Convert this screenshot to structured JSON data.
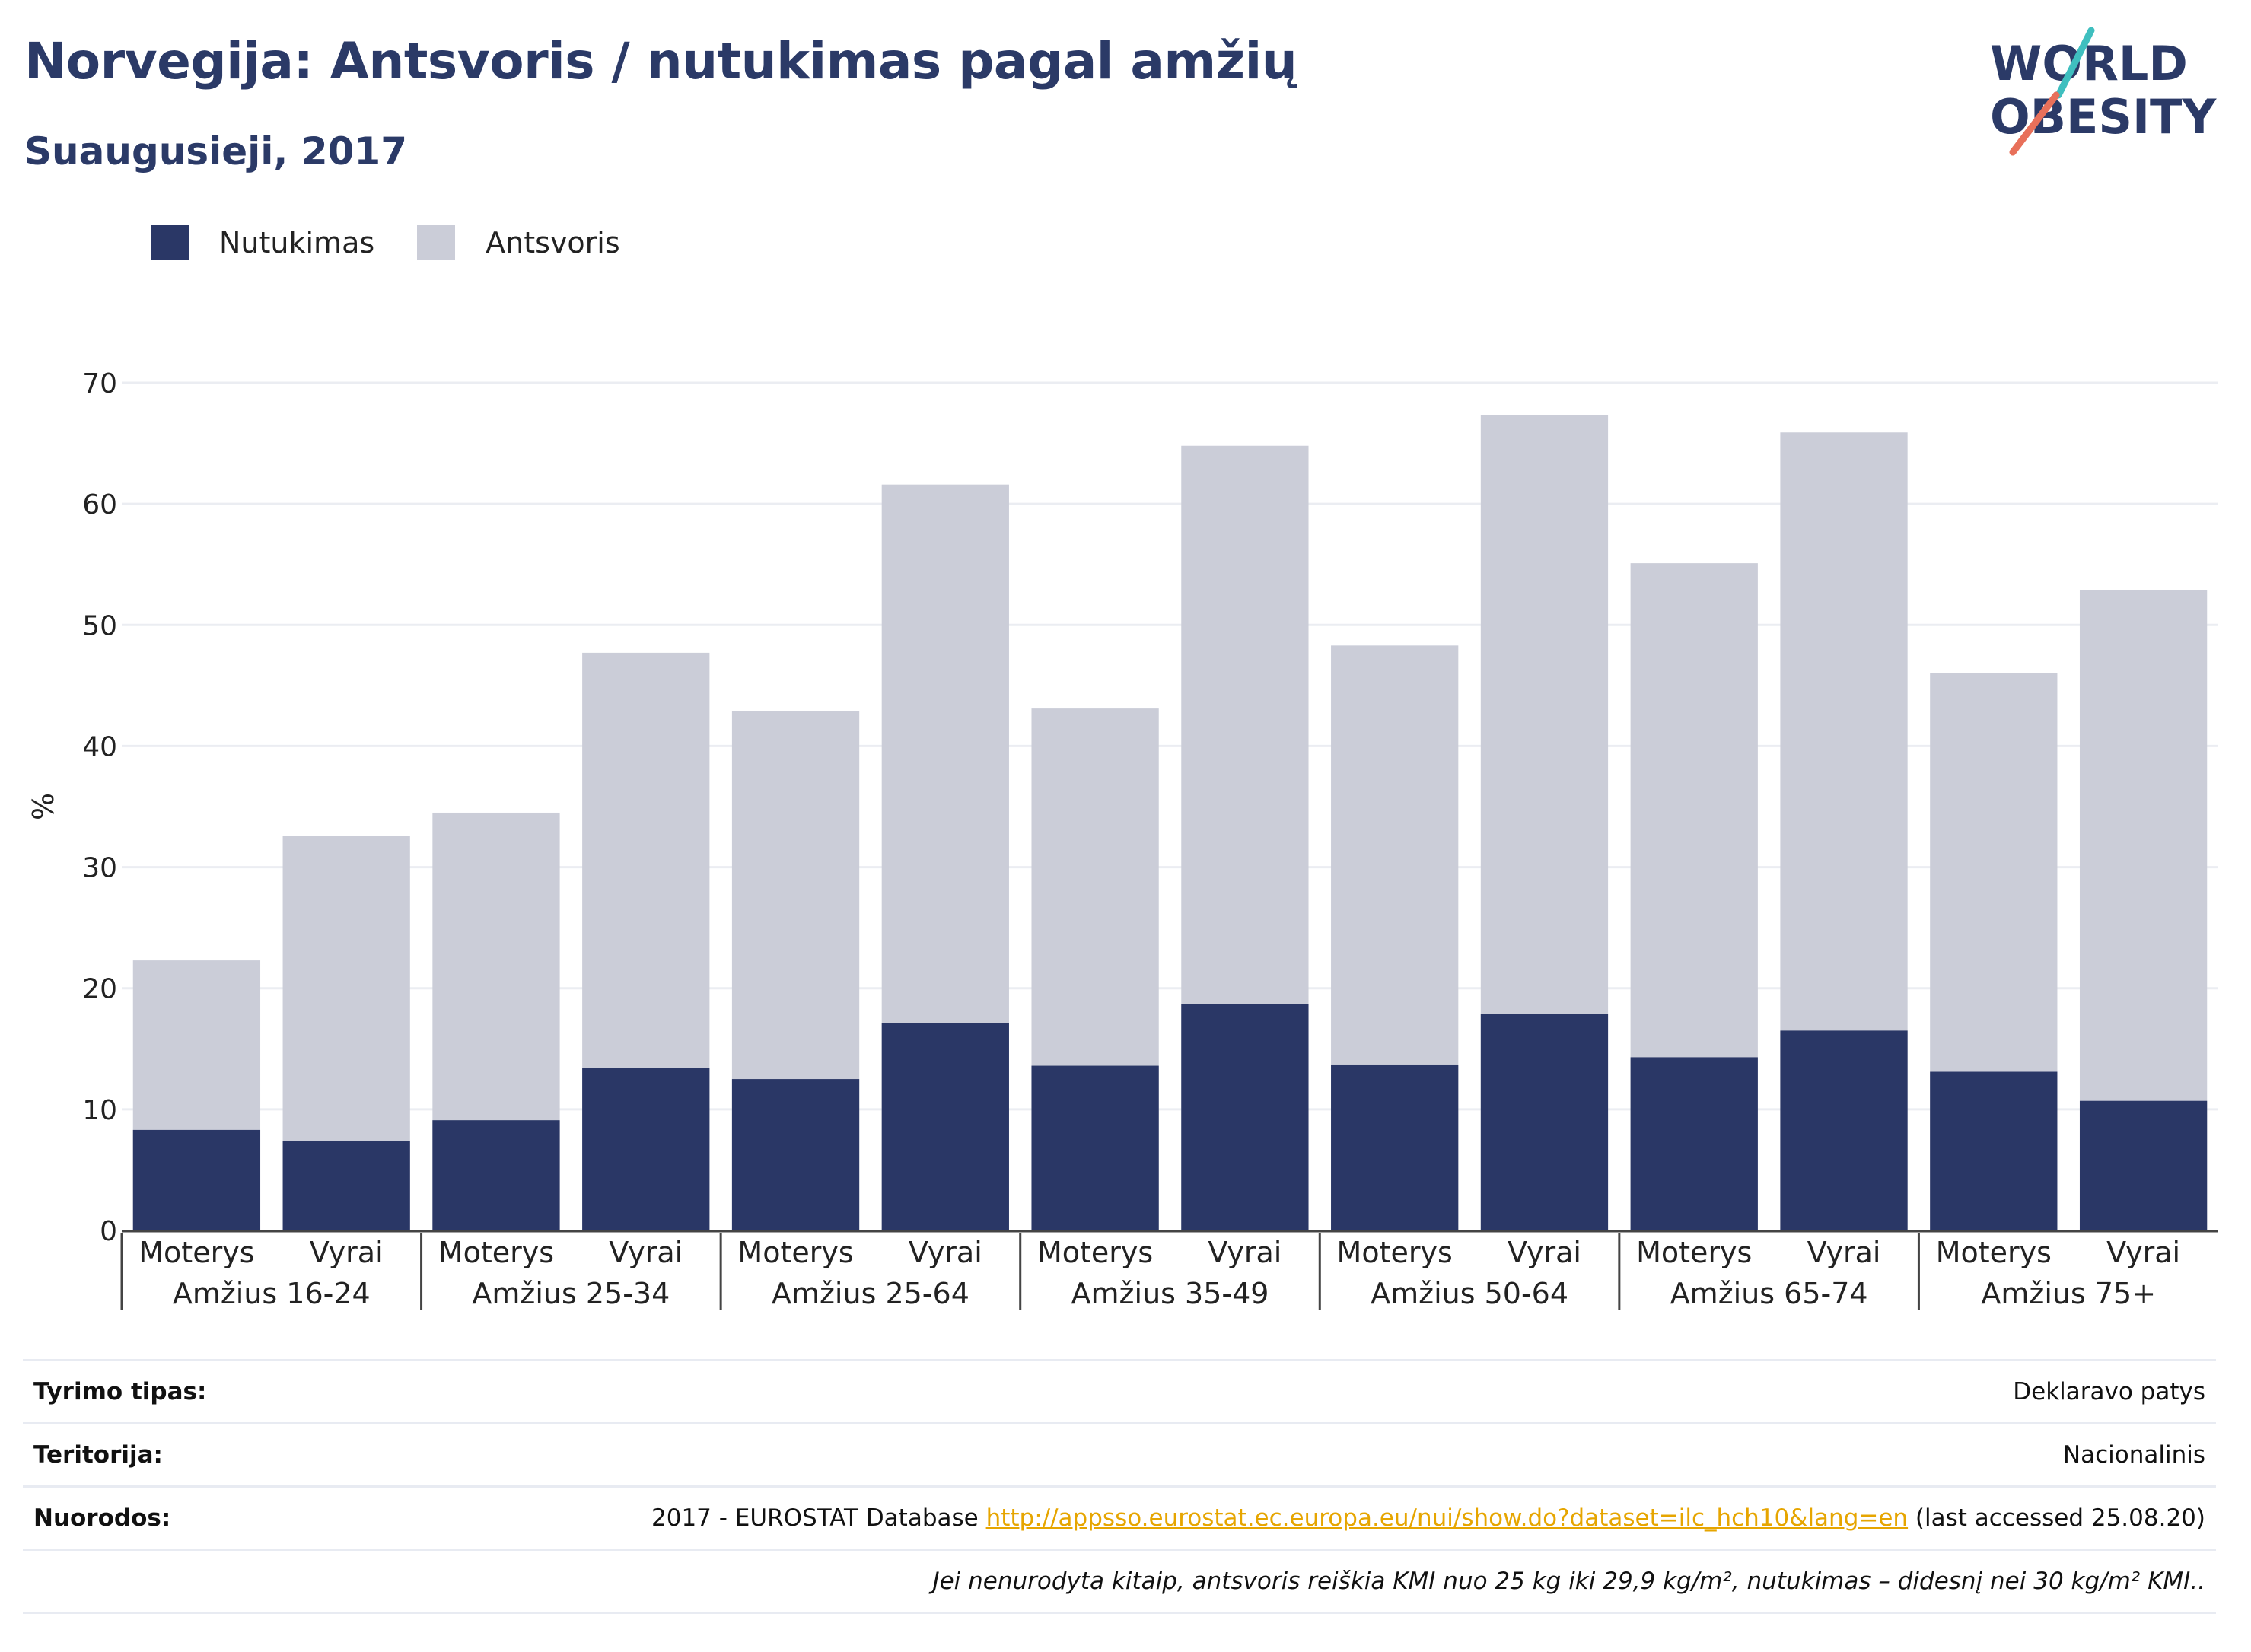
{
  "header": {
    "title": "Norvegija: Antsvoris / nutukimas pagal amžių",
    "subtitle": "Suaugusieji, 2017"
  },
  "logo": {
    "line1": "WORLD",
    "line2": "OBESITY"
  },
  "legend": [
    {
      "label": "Nutukimas",
      "color": "#2a3766"
    },
    {
      "label": "Antsvoris",
      "color": "#cbcdd8"
    }
  ],
  "chart_data": {
    "type": "bar",
    "stacked": false,
    "ylabel": "%",
    "ylim": [
      0,
      70
    ],
    "yticks": [
      0,
      10,
      20,
      30,
      40,
      50,
      60,
      70
    ],
    "grid": true,
    "legend_position": "top-left",
    "groups": [
      "Amžius 16-24",
      "Amžius 25-34",
      "Amžius 25-64",
      "Amžius 35-49",
      "Amžius 50-64",
      "Amžius 65-74",
      "Amžius 75+"
    ],
    "sexes": [
      "Moterys",
      "Vyrai"
    ],
    "series": [
      {
        "name": "Nutukimas",
        "color": "#2a3766",
        "values": [
          8.3,
          7.4,
          9.1,
          13.4,
          12.5,
          17.1,
          13.6,
          18.7,
          13.7,
          17.9,
          14.3,
          16.5,
          13.1,
          10.7
        ]
      },
      {
        "name": "Antsvoris",
        "color": "#cbcdd8",
        "values": [
          22.3,
          32.6,
          34.5,
          47.7,
          42.9,
          61.6,
          43.1,
          64.8,
          48.3,
          67.3,
          55.1,
          65.9,
          46.0,
          52.9
        ]
      }
    ]
  },
  "meta": {
    "survey_label": "Tyrimo tipas:",
    "survey_value": "Deklaravo patys",
    "territory_label": "Teritorija:",
    "territory_value": "Nacionalinis",
    "refs_label": "Nuorodos:",
    "refs_prefix": "2017 - EUROSTAT Database ",
    "refs_link": "http://appsso.eurostat.ec.europa.eu/nui/show.do?dataset=ilc_hch10&lang=en",
    "refs_suffix": " (last accessed 25.08.20)",
    "note": "Jei nenurodyta kitaip, antsvoris reiškia KMI nuo 25 kg iki 29,9 kg/m², nutukimas – didesnį nei 30 kg/m² KMI.."
  }
}
